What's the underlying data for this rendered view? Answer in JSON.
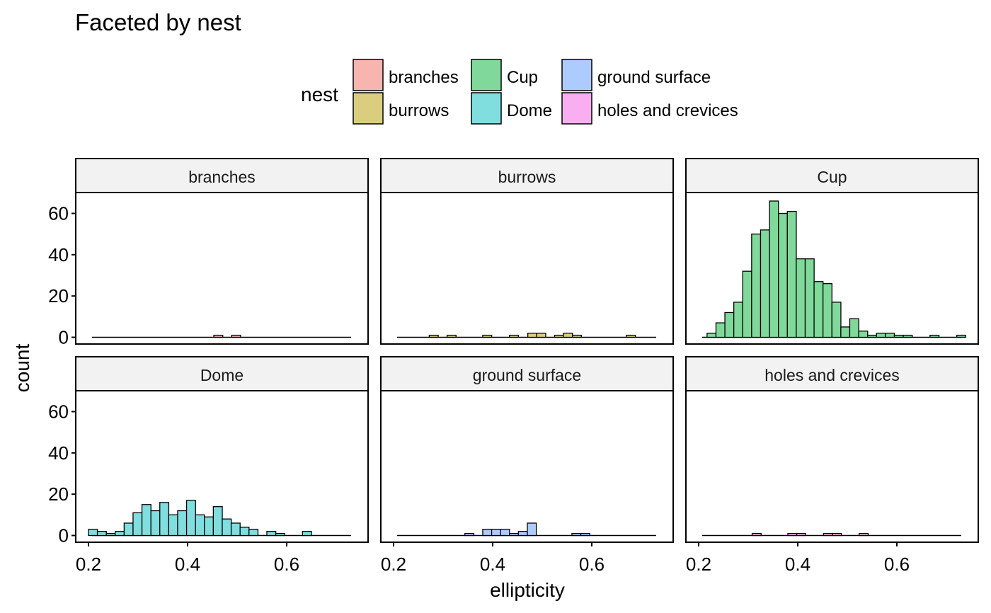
{
  "chart_data": {
    "type": "bar",
    "title": "Faceted by nest",
    "xlabel": "ellipticity",
    "ylabel": "count",
    "xlim": [
      0.2,
      0.74
    ],
    "ylim": [
      0,
      70
    ],
    "xticks": [
      0.2,
      0.4,
      0.6
    ],
    "xtick_labels": [
      "0.2",
      "0.4",
      "0.6"
    ],
    "yticks": [
      0,
      20,
      40,
      60
    ],
    "ytick_labels": [
      "0",
      "20",
      "40",
      "60"
    ],
    "bin_width": 0.0181,
    "legend": {
      "title": "nest",
      "position": "top",
      "entries": [
        {
          "label": "branches",
          "color": "#F8B4AE"
        },
        {
          "label": "burrows",
          "color": "#DACD80"
        },
        {
          "label": "Cup",
          "color": "#80D99A"
        },
        {
          "label": "Dome",
          "color": "#80DEDF"
        },
        {
          "label": "ground surface",
          "color": "#AECBFD"
        },
        {
          "label": "holes and crevices",
          "color": "#F8AEF0"
        }
      ]
    },
    "facets": [
      {
        "name": "branches",
        "color": "#F8B4AE",
        "x_start": 0.207,
        "x_end": 0.73,
        "bars": [
          {
            "x": 0.462,
            "count": 1
          },
          {
            "x": 0.498,
            "count": 1
          }
        ]
      },
      {
        "name": "burrows",
        "color": "#DACD80",
        "x_start": 0.207,
        "x_end": 0.73,
        "bars": [
          {
            "x": 0.281,
            "count": 1
          },
          {
            "x": 0.317,
            "count": 1
          },
          {
            "x": 0.389,
            "count": 1
          },
          {
            "x": 0.443,
            "count": 1
          },
          {
            "x": 0.48,
            "count": 2
          },
          {
            "x": 0.498,
            "count": 2
          },
          {
            "x": 0.534,
            "count": 1
          },
          {
            "x": 0.552,
            "count": 2
          },
          {
            "x": 0.57,
            "count": 1
          },
          {
            "x": 0.679,
            "count": 1
          }
        ]
      },
      {
        "name": "Cup",
        "color": "#80D99A",
        "x_start": 0.207,
        "x_end": 0.73,
        "bars": [
          {
            "x": 0.226,
            "count": 2
          },
          {
            "x": 0.244,
            "count": 7
          },
          {
            "x": 0.262,
            "count": 12
          },
          {
            "x": 0.28,
            "count": 17
          },
          {
            "x": 0.298,
            "count": 32
          },
          {
            "x": 0.316,
            "count": 50
          },
          {
            "x": 0.334,
            "count": 52
          },
          {
            "x": 0.352,
            "count": 66
          },
          {
            "x": 0.37,
            "count": 60
          },
          {
            "x": 0.388,
            "count": 61
          },
          {
            "x": 0.406,
            "count": 38
          },
          {
            "x": 0.424,
            "count": 38
          },
          {
            "x": 0.442,
            "count": 27
          },
          {
            "x": 0.46,
            "count": 26
          },
          {
            "x": 0.478,
            "count": 17
          },
          {
            "x": 0.496,
            "count": 5
          },
          {
            "x": 0.514,
            "count": 9
          },
          {
            "x": 0.532,
            "count": 3
          },
          {
            "x": 0.55,
            "count": 1
          },
          {
            "x": 0.568,
            "count": 2
          },
          {
            "x": 0.586,
            "count": 2
          },
          {
            "x": 0.604,
            "count": 1
          },
          {
            "x": 0.622,
            "count": 1
          },
          {
            "x": 0.676,
            "count": 1
          },
          {
            "x": 0.73,
            "count": 1
          }
        ]
      },
      {
        "name": "Dome",
        "color": "#80DEDF",
        "x_start": 0.207,
        "x_end": 0.73,
        "bars": [
          {
            "x": 0.209,
            "count": 3
          },
          {
            "x": 0.227,
            "count": 2
          },
          {
            "x": 0.245,
            "count": 1
          },
          {
            "x": 0.263,
            "count": 2
          },
          {
            "x": 0.281,
            "count": 6
          },
          {
            "x": 0.299,
            "count": 11
          },
          {
            "x": 0.317,
            "count": 15
          },
          {
            "x": 0.335,
            "count": 12
          },
          {
            "x": 0.353,
            "count": 16
          },
          {
            "x": 0.371,
            "count": 10
          },
          {
            "x": 0.389,
            "count": 12
          },
          {
            "x": 0.407,
            "count": 17
          },
          {
            "x": 0.425,
            "count": 10
          },
          {
            "x": 0.443,
            "count": 9
          },
          {
            "x": 0.461,
            "count": 14
          },
          {
            "x": 0.479,
            "count": 8
          },
          {
            "x": 0.497,
            "count": 6
          },
          {
            "x": 0.515,
            "count": 4
          },
          {
            "x": 0.533,
            "count": 3
          },
          {
            "x": 0.569,
            "count": 2
          },
          {
            "x": 0.587,
            "count": 1
          },
          {
            "x": 0.641,
            "count": 2
          }
        ]
      },
      {
        "name": "ground surface",
        "color": "#AECBFD",
        "x_start": 0.207,
        "x_end": 0.73,
        "bars": [
          {
            "x": 0.353,
            "count": 1
          },
          {
            "x": 0.389,
            "count": 3
          },
          {
            "x": 0.407,
            "count": 3
          },
          {
            "x": 0.425,
            "count": 3
          },
          {
            "x": 0.443,
            "count": 1
          },
          {
            "x": 0.461,
            "count": 2
          },
          {
            "x": 0.479,
            "count": 6
          },
          {
            "x": 0.569,
            "count": 1
          },
          {
            "x": 0.587,
            "count": 1
          }
        ]
      },
      {
        "name": "holes and crevices",
        "color": "#F8AEF0",
        "x_start": 0.207,
        "x_end": 0.73,
        "bars": [
          {
            "x": 0.317,
            "count": 1
          },
          {
            "x": 0.389,
            "count": 1
          },
          {
            "x": 0.407,
            "count": 1
          },
          {
            "x": 0.461,
            "count": 1
          },
          {
            "x": 0.479,
            "count": 1
          },
          {
            "x": 0.533,
            "count": 1
          }
        ]
      }
    ]
  }
}
